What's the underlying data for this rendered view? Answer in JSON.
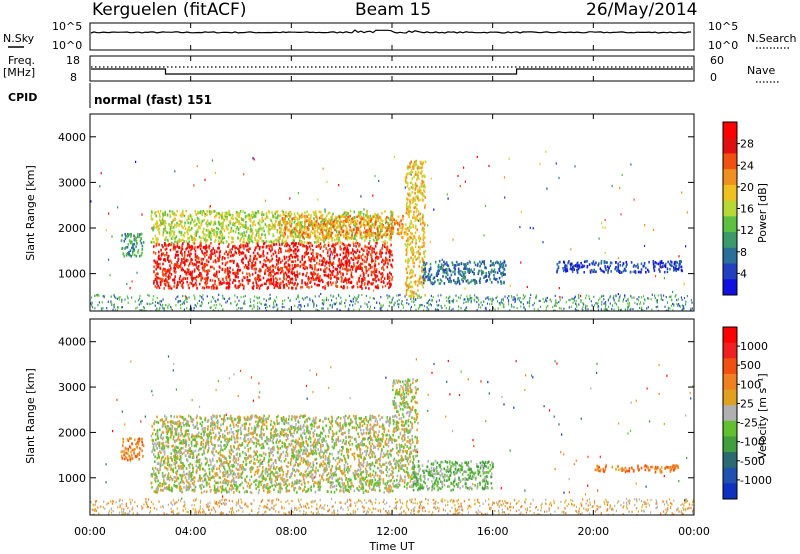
{
  "header": {
    "station": "Kerguelen (fitACF)",
    "beam": "Beam 15",
    "date": "26/May/2014"
  },
  "top_panels": {
    "nsky_label": "N.Sky",
    "nsky_ticks": [
      "10^5",
      "10^0"
    ],
    "nsearch_label": "N.Search",
    "nsearch_ticks": [
      "10^5",
      "10^0"
    ],
    "freq_label_1": "Freq.",
    "freq_label_2": "[MHz]",
    "freq_ticks": [
      "18",
      "8"
    ],
    "nave_label": "Nave",
    "nave_ticks": [
      "60",
      "0"
    ],
    "cpid_label": "CPID",
    "cpid_value": "normal (fast) 151"
  },
  "colors": {
    "power_scale": [
      "#1010e0",
      "#2040c0",
      "#2a6e9a",
      "#3a9a6a",
      "#5cc040",
      "#b8d838",
      "#f0c020",
      "#f09020",
      "#f05010",
      "#e01010",
      "#ff0000"
    ],
    "velocity_scale": [
      "#1030c0",
      "#2050b0",
      "#2a6a70",
      "#40a040",
      "#60c030",
      "#b0b0b0",
      "#e0a020",
      "#f08020",
      "#f05010",
      "#f02020",
      "#ff0000"
    ],
    "noise_blue": "#2f56b4",
    "noise_gold": "#e0b020"
  },
  "chart_data": [
    {
      "type": "heatmap",
      "title": "Power",
      "xlabel": "Time UT",
      "ylabel": "Slant Range [km]",
      "colorbar_label": "Power [dB]",
      "colorbar_ticks": [
        "28",
        "24",
        "20",
        "16",
        "12",
        "8",
        "4"
      ],
      "xlim": [
        0,
        24
      ],
      "ylim": [
        180,
        4500
      ],
      "yticks": [
        "4000",
        "3000",
        "2000",
        "1000"
      ],
      "ytick_values": [
        4000,
        3000,
        2000,
        1000
      ],
      "regions": [
        {
          "t0": 1.2,
          "t1": 2.1,
          "r0": 1400,
          "r1": 1900,
          "level": 3
        },
        {
          "t0": 2.4,
          "t1": 12.0,
          "r0": 1700,
          "r1": 2400,
          "level": 5
        },
        {
          "t0": 2.5,
          "t1": 12.0,
          "r0": 700,
          "r1": 1700,
          "level": 9
        },
        {
          "t0": 7.5,
          "t1": 12.5,
          "r0": 1800,
          "r1": 2300,
          "level": 7
        },
        {
          "t0": 12.5,
          "t1": 13.3,
          "r0": 500,
          "r1": 3500,
          "level": 6
        },
        {
          "t0": 13.2,
          "t1": 16.5,
          "r0": 800,
          "r1": 1300,
          "level": 2
        },
        {
          "t0": 18.5,
          "t1": 23.5,
          "r0": 1050,
          "r1": 1300,
          "level": 1
        }
      ]
    },
    {
      "type": "heatmap",
      "title": "Velocity",
      "xlabel": "Time UT",
      "ylabel": "Slant Range [km]",
      "colorbar_label": "Velocity [m s⁻¹]",
      "colorbar_ticks": [
        "1000",
        "500",
        "100",
        "25",
        "-25",
        "-100",
        "-500",
        "-1000"
      ],
      "xlim": [
        0,
        24
      ],
      "ylim": [
        180,
        4500
      ],
      "yticks": [
        "4000",
        "3000",
        "2000",
        "1000"
      ],
      "ytick_values": [
        4000,
        3000,
        2000,
        1000
      ],
      "regions": [
        {
          "t0": 1.2,
          "t1": 2.1,
          "r0": 1400,
          "r1": 1900,
          "level": 7
        },
        {
          "t0": 2.4,
          "t1": 12.0,
          "r0": 700,
          "r1": 2400,
          "level": 5
        },
        {
          "t0": 12.0,
          "t1": 13.0,
          "r0": 800,
          "r1": 3200,
          "level": 5
        },
        {
          "t0": 12.8,
          "t1": 16.0,
          "r0": 750,
          "r1": 1400,
          "level": 4
        },
        {
          "t0": 20.0,
          "t1": 23.5,
          "r0": 1150,
          "r1": 1300,
          "level": 7
        }
      ]
    }
  ],
  "x_axis": {
    "ticks": [
      "00:00",
      "04:00",
      "08:00",
      "12:00",
      "16:00",
      "20:00",
      "00:00"
    ],
    "label": "Time UT"
  }
}
